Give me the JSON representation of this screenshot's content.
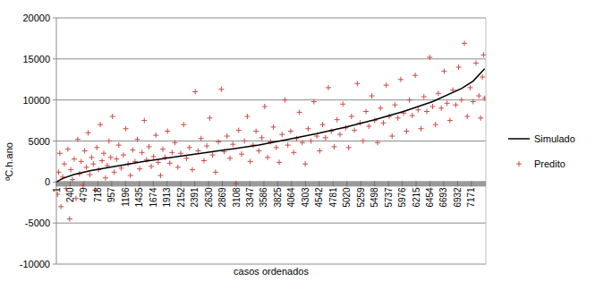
{
  "chart_data": {
    "type": "scatter",
    "x_label": "casos ordenados",
    "y_label": "ºC.h.ano",
    "xlim": [
      1,
      7420
    ],
    "ylim": [
      -10000,
      20000
    ],
    "xticks": [
      1,
      240,
      479,
      718,
      957,
      1196,
      1435,
      1674,
      1913,
      2152,
      2391,
      2630,
      2869,
      3108,
      3347,
      3586,
      3825,
      4064,
      4303,
      4542,
      4781,
      5020,
      5259,
      5498,
      5737,
      5976,
      6215,
      6454,
      6693,
      6932,
      7171
    ],
    "yticks": [
      -10000,
      -5000,
      0,
      5000,
      10000,
      15000,
      20000
    ],
    "grid": true,
    "legend": "right",
    "series": [
      {
        "name": "Simulado",
        "type": "line",
        "color": "#000000",
        "line_style": "solid",
        "x": [
          1,
          100,
          300,
          600,
          1000,
          1500,
          2000,
          2500,
          3000,
          3500,
          4000,
          4500,
          5000,
          5500,
          6000,
          6500,
          7000,
          7200,
          7400
        ],
        "values": [
          0,
          400,
          900,
          1400,
          1900,
          2500,
          3000,
          3500,
          4000,
          4500,
          5200,
          5900,
          6700,
          7600,
          8600,
          9800,
          11400,
          12300,
          13800
        ]
      },
      {
        "name": "Predito",
        "type": "scatter",
        "color": "#d04a46",
        "marker": "plus",
        "x": [
          20,
          40,
          60,
          80,
          110,
          140,
          170,
          200,
          230,
          250,
          280,
          310,
          340,
          370,
          400,
          430,
          460,
          490,
          520,
          550,
          580,
          610,
          640,
          670,
          700,
          730,
          760,
          790,
          820,
          850,
          880,
          910,
          940,
          970,
          1000,
          1040,
          1080,
          1120,
          1160,
          1200,
          1240,
          1280,
          1320,
          1360,
          1400,
          1440,
          1480,
          1520,
          1560,
          1600,
          1640,
          1680,
          1720,
          1760,
          1800,
          1840,
          1880,
          1920,
          1960,
          2000,
          2050,
          2100,
          2150,
          2200,
          2250,
          2300,
          2350,
          2400,
          2450,
          2500,
          2550,
          2600,
          2650,
          2700,
          2750,
          2800,
          2850,
          2900,
          2950,
          3000,
          3050,
          3100,
          3150,
          3200,
          3250,
          3300,
          3350,
          3400,
          3450,
          3500,
          3550,
          3600,
          3650,
          3700,
          3750,
          3800,
          3850,
          3900,
          3950,
          4000,
          4050,
          4100,
          4150,
          4200,
          4250,
          4300,
          4350,
          4400,
          4450,
          4500,
          4550,
          4600,
          4650,
          4700,
          4750,
          4800,
          4850,
          4900,
          4950,
          5000,
          5050,
          5100,
          5150,
          5200,
          5250,
          5300,
          5350,
          5400,
          5450,
          5500,
          5550,
          5600,
          5650,
          5700,
          5750,
          5800,
          5850,
          5900,
          5950,
          6000,
          6050,
          6100,
          6150,
          6200,
          6250,
          6300,
          6350,
          6400,
          6450,
          6500,
          6550,
          6600,
          6650,
          6700,
          6750,
          6800,
          6850,
          6900,
          6950,
          7000,
          7050,
          7100,
          7150,
          7200,
          7250,
          7300,
          7330,
          7360,
          7380,
          7400
        ],
        "values": [
          -1500,
          1200,
          3500,
          -3000,
          600,
          2200,
          -800,
          4000,
          -4500,
          1500,
          300,
          2800,
          -2000,
          5200,
          1000,
          2500,
          -400,
          3800,
          1800,
          6000,
          900,
          3000,
          2200,
          -1000,
          4200,
          1500,
          7000,
          2600,
          3500,
          500,
          2000,
          5000,
          3000,
          8000,
          1200,
          2800,
          4500,
          1700,
          3300,
          6500,
          2200,
          800,
          3900,
          2500,
          5200,
          1600,
          3600,
          7500,
          2700,
          4300,
          1900,
          3100,
          5700,
          2400,
          800,
          4000,
          3000,
          6200,
          2300,
          3600,
          4800,
          1800,
          3500,
          7000,
          2900,
          4200,
          1500,
          11000,
          3800,
          5300,
          2600,
          4400,
          7800,
          3300,
          1200,
          4900,
          11300,
          3700,
          5600,
          2900,
          4600,
          -200,
          6300,
          3400,
          5000,
          8000,
          2500,
          4500,
          6200,
          3800,
          5400,
          9200,
          3000,
          4900,
          6700,
          4200,
          2400,
          5800,
          10000,
          4500,
          6200,
          3600,
          5300,
          8500,
          4800,
          2200,
          6500,
          5000,
          9800,
          5600,
          3800,
          7000,
          5400,
          11500,
          6200,
          4300,
          7600,
          5800,
          9500,
          6600,
          4200,
          8000,
          6300,
          12000,
          7200,
          5000,
          8600,
          6800,
          10500,
          7500,
          4800,
          9000,
          7200,
          11800,
          8000,
          5600,
          9400,
          7800,
          12500,
          8400,
          6200,
          10000,
          8100,
          13000,
          8800,
          6500,
          10400,
          8600,
          15200,
          9200,
          7000,
          10800,
          9000,
          13500,
          9600,
          7500,
          11200,
          9400,
          14000,
          10000,
          16900,
          8000,
          11500,
          9800,
          14500,
          10500,
          7800,
          12800,
          15500,
          10200
        ]
      }
    ]
  }
}
